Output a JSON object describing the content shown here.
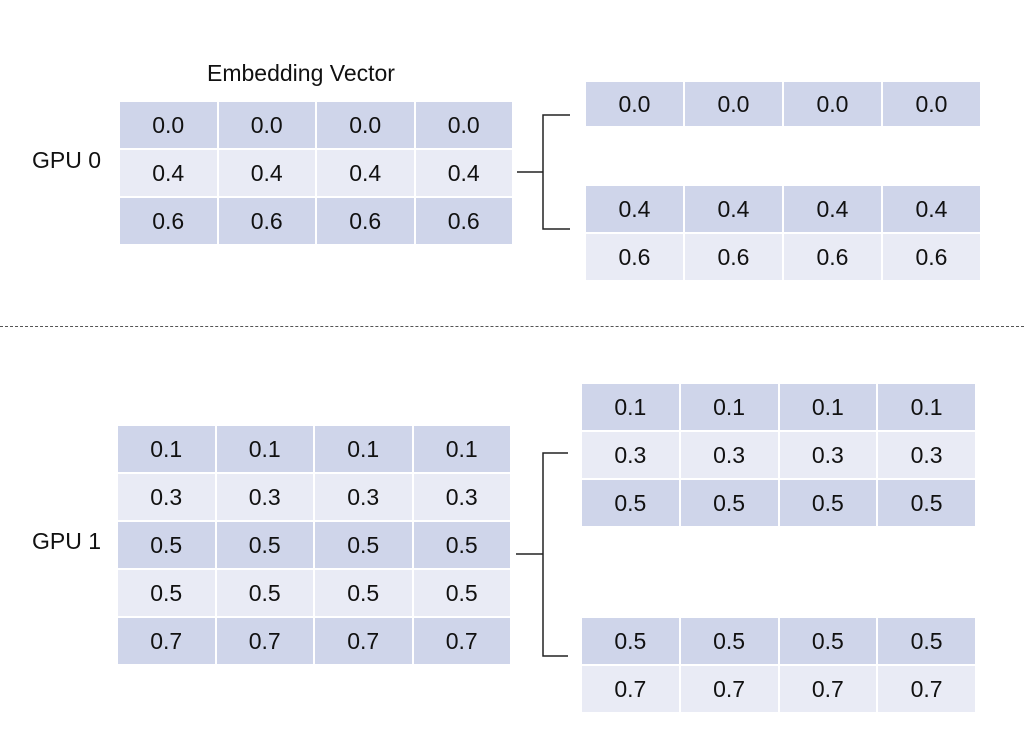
{
  "title": "Embedding Vector",
  "gpu0": {
    "label": "GPU 0",
    "embedding": [
      [
        "0.0",
        "0.0",
        "0.0",
        "0.0"
      ],
      [
        "0.4",
        "0.4",
        "0.4",
        "0.4"
      ],
      [
        "0.6",
        "0.6",
        "0.6",
        "0.6"
      ]
    ],
    "split_top": [
      [
        "0.0",
        "0.0",
        "0.0",
        "0.0"
      ]
    ],
    "split_bottom": [
      [
        "0.4",
        "0.4",
        "0.4",
        "0.4"
      ],
      [
        "0.6",
        "0.6",
        "0.6",
        "0.6"
      ]
    ]
  },
  "gpu1": {
    "label": "GPU 1",
    "embedding": [
      [
        "0.1",
        "0.1",
        "0.1",
        "0.1"
      ],
      [
        "0.3",
        "0.3",
        "0.3",
        "0.3"
      ],
      [
        "0.5",
        "0.5",
        "0.5",
        "0.5"
      ],
      [
        "0.5",
        "0.5",
        "0.5",
        "0.5"
      ],
      [
        "0.7",
        "0.7",
        "0.7",
        "0.7"
      ]
    ],
    "split_top": [
      [
        "0.1",
        "0.1",
        "0.1",
        "0.1"
      ],
      [
        "0.3",
        "0.3",
        "0.3",
        "0.3"
      ],
      [
        "0.5",
        "0.5",
        "0.5",
        "0.5"
      ]
    ],
    "split_bottom": [
      [
        "0.5",
        "0.5",
        "0.5",
        "0.5"
      ],
      [
        "0.7",
        "0.7",
        "0.7",
        "0.7"
      ]
    ]
  },
  "colors": {
    "row_dark": "#cfd5ea",
    "row_light": "#e9ebf5"
  }
}
